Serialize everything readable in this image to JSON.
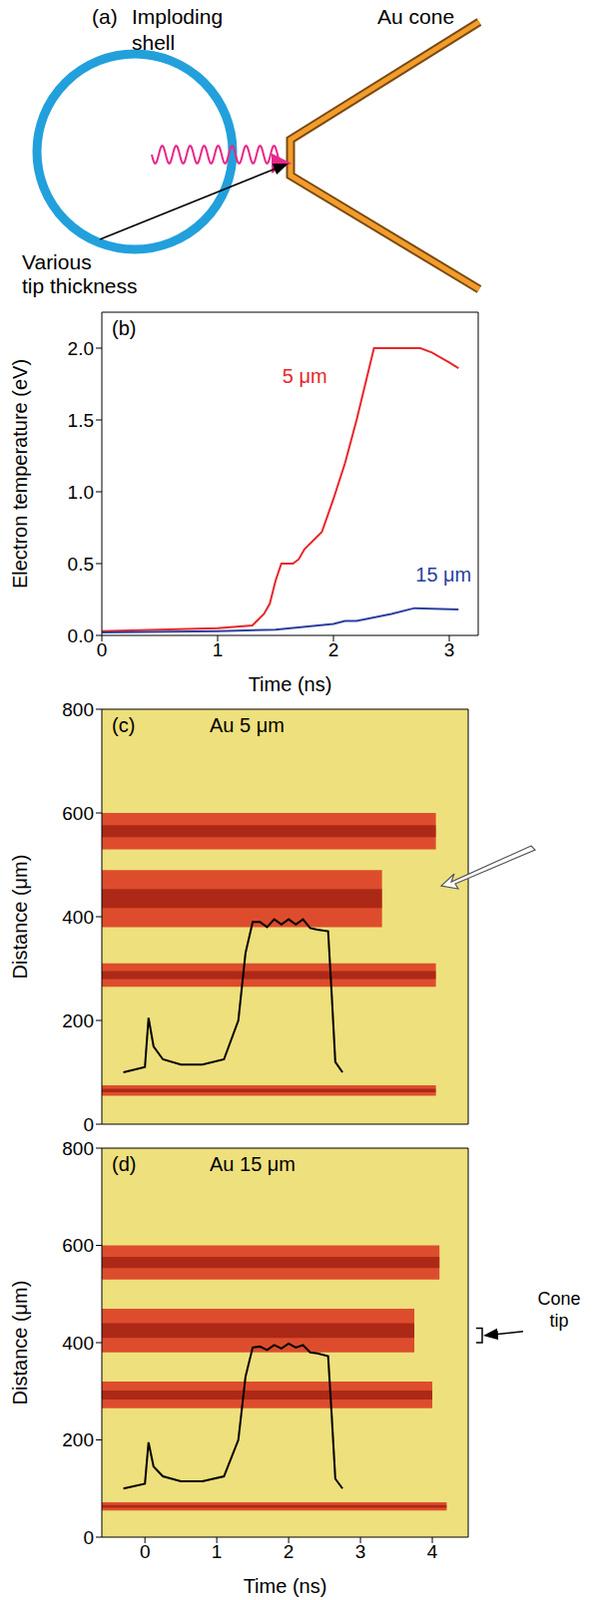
{
  "diagram": {
    "label": "(a)",
    "shell": "Imploding shell",
    "cone": "Au cone",
    "tip": "Various tip thickness"
  },
  "chart_data": [
    {
      "panel": "(b)",
      "type": "line",
      "xlabel": "Time (ns)",
      "ylabel": "Electron temperature (eV)",
      "xlim": [
        0,
        3.25
      ],
      "xticks": [
        0,
        1,
        2,
        3
      ],
      "ylim": [
        0,
        2.25
      ],
      "yticks": [
        {
          "value": 0,
          "label": "0.0"
        },
        0.5,
        {
          "value": 1,
          "label": "1.0"
        },
        1.5,
        {
          "value": 2,
          "label": "2.0"
        }
      ],
      "series": [
        {
          "name": "5 μm",
          "color": "#e8262b",
          "x": [
            0,
            1,
            1.3,
            1.4,
            1.45,
            1.5,
            1.55,
            1.65,
            1.7,
            1.75,
            1.85,
            1.9,
            2.0,
            2.1,
            2.2,
            2.35,
            2.65,
            2.75,
            2.85,
            3.0,
            3.08
          ],
          "values": [
            0.03,
            0.05,
            0.07,
            0.15,
            0.22,
            0.38,
            0.5,
            0.5,
            0.53,
            0.6,
            0.68,
            0.72,
            0.95,
            1.2,
            1.5,
            2.0,
            2.0,
            2.0,
            1.97,
            1.9,
            1.86
          ]
        },
        {
          "name": "15 μm",
          "color": "#2a3f9e",
          "x": [
            0,
            1,
            1.5,
            2.0,
            2.1,
            2.2,
            2.5,
            2.7,
            3.08
          ],
          "values": [
            0.02,
            0.03,
            0.04,
            0.08,
            0.1,
            0.1,
            0.15,
            0.19,
            0.18
          ]
        }
      ]
    },
    {
      "panel": "(c)",
      "type": "streak",
      "title": "Au 5 μm",
      "ylabel": "Distance (μm)",
      "xlim": [
        -0.6,
        4.5
      ],
      "xticks": [
        0,
        1,
        2,
        3,
        4
      ],
      "ylim": [
        0,
        800
      ],
      "yticks": [
        0,
        200,
        400,
        600,
        800
      ],
      "tick_labels": "y",
      "color": "#d9321e",
      "streaks": [
        {
          "y": [
            530,
            600
          ],
          "end": 4.05
        },
        {
          "y": [
            380,
            490
          ],
          "end": 3.3
        },
        {
          "y": [
            265,
            310
          ],
          "end": 4.05
        },
        {
          "y": [
            55,
            75
          ],
          "end": 4.05
        }
      ],
      "pulse": {
        "color": "#000000",
        "x": [
          -0.3,
          0,
          0.05,
          0.12,
          0.25,
          0.5,
          0.8,
          1.1,
          1.3,
          1.4,
          1.5,
          1.6,
          1.7,
          1.8,
          1.9,
          2.0,
          2.1,
          2.2,
          2.3,
          2.4,
          2.55,
          2.6,
          2.65,
          2.75
        ],
        "values": [
          100,
          110,
          205,
          150,
          125,
          115,
          115,
          125,
          200,
          330,
          390,
          390,
          380,
          395,
          385,
          395,
          385,
          395,
          378,
          375,
          372,
          250,
          120,
          100
        ]
      }
    },
    {
      "panel": "(d)",
      "type": "streak",
      "title": "Au 15 μm",
      "xlabel": "Time (ns)",
      "ylabel": "Distance (μm)",
      "xlim": [
        -0.6,
        4.5
      ],
      "xticks": [
        0,
        1,
        2,
        3,
        4
      ],
      "ylim": [
        0,
        800
      ],
      "yticks": [
        0,
        200,
        400,
        600,
        800
      ],
      "color": "#d9321e",
      "streaks": [
        {
          "y": [
            530,
            600
          ],
          "end": 4.1
        },
        {
          "y": [
            380,
            470
          ],
          "end": 3.75
        },
        {
          "y": [
            265,
            320
          ],
          "end": 4.0
        },
        {
          "y": [
            55,
            72
          ],
          "end": 4.2
        }
      ],
      "pulse": {
        "color": "#000000",
        "x": [
          -0.3,
          0,
          0.05,
          0.12,
          0.25,
          0.5,
          0.8,
          1.1,
          1.3,
          1.4,
          1.5,
          1.6,
          1.7,
          1.8,
          1.9,
          2.0,
          2.1,
          2.2,
          2.3,
          2.4,
          2.55,
          2.6,
          2.65,
          2.75
        ],
        "values": [
          100,
          110,
          195,
          145,
          125,
          115,
          115,
          125,
          200,
          330,
          390,
          392,
          385,
          395,
          388,
          398,
          390,
          395,
          380,
          378,
          372,
          250,
          120,
          100
        ]
      },
      "annotation": {
        "text": "Cone tip",
        "y": [
          400,
          430
        ]
      }
    }
  ]
}
